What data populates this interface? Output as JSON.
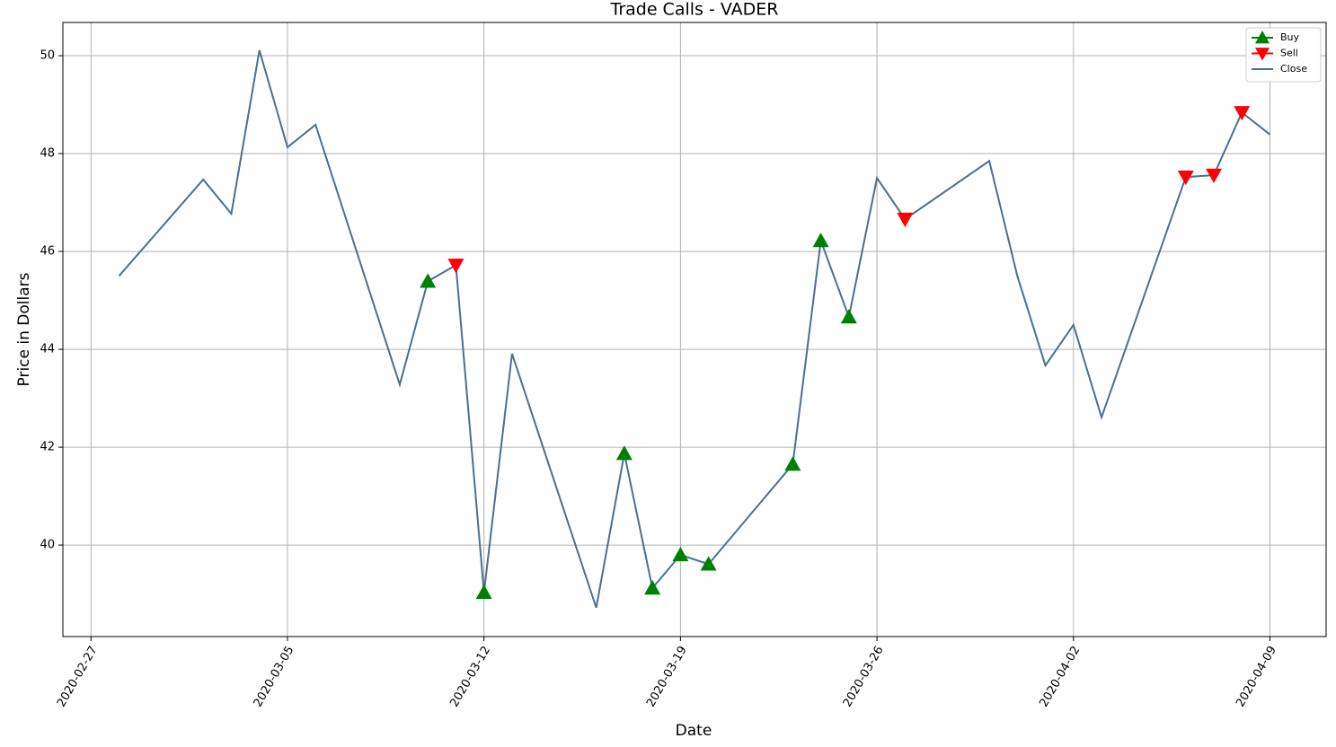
{
  "chart_data": {
    "type": "line",
    "title": "Trade Calls - VADER",
    "x_label": "Date",
    "y_label": "Price in Dollars",
    "series": [
      {
        "name": "Buy",
        "color": "#008000",
        "marker": "triangle-up",
        "x": [
          "2020-03-10",
          "2020-03-12",
          "2020-03-17",
          "2020-03-18",
          "2020-03-19",
          "2020-03-20",
          "2020-03-23",
          "2020-03-24",
          "2020-03-25"
        ],
        "values": [
          45.39,
          39.03,
          41.87,
          39.12,
          39.8,
          39.61,
          41.65,
          46.22,
          44.66
        ]
      },
      {
        "name": "Sell",
        "color": "#ff0000",
        "marker": "triangle-down",
        "x": [
          "2020-03-11",
          "2020-03-27",
          "2020-04-06",
          "2020-04-07",
          "2020-04-08"
        ],
        "values": [
          45.72,
          46.66,
          47.52,
          47.56,
          48.84
        ]
      },
      {
        "name": "Close",
        "color": "#4b6f91",
        "marker": "line",
        "x": [
          "2020-02-28",
          "2020-03-02",
          "2020-03-03",
          "2020-03-04",
          "2020-03-05",
          "2020-03-06",
          "2020-03-09",
          "2020-03-10",
          "2020-03-11",
          "2020-03-12",
          "2020-03-13",
          "2020-03-16",
          "2020-03-17",
          "2020-03-18",
          "2020-03-19",
          "2020-03-20",
          "2020-03-23",
          "2020-03-24",
          "2020-03-25",
          "2020-03-26",
          "2020-03-27",
          "2020-03-30",
          "2020-03-31",
          "2020-04-01",
          "2020-04-02",
          "2020-04-03",
          "2020-04-06",
          "2020-04-07",
          "2020-04-08",
          "2020-04-09"
        ],
        "values": [
          45.5,
          47.47,
          46.77,
          50.11,
          48.13,
          48.59,
          43.28,
          45.39,
          45.72,
          39.03,
          43.91,
          38.72,
          41.87,
          39.12,
          39.8,
          39.61,
          41.65,
          46.22,
          44.66,
          47.5,
          46.66,
          47.85,
          45.5,
          43.67,
          44.5,
          42.61,
          47.52,
          47.56,
          48.84,
          48.39
        ]
      }
    ],
    "xlim": [
      "2020-02-26",
      "2020-04-11"
    ],
    "xticks": [
      "2020-02-27",
      "2020-03-05",
      "2020-03-12",
      "2020-03-19",
      "2020-03-26",
      "2020-04-02",
      "2020-04-09"
    ],
    "ylim": [
      38.13,
      50.68
    ],
    "yticks": [
      40,
      42,
      44,
      46,
      48,
      50
    ],
    "grid": true,
    "legend": "upper right"
  }
}
